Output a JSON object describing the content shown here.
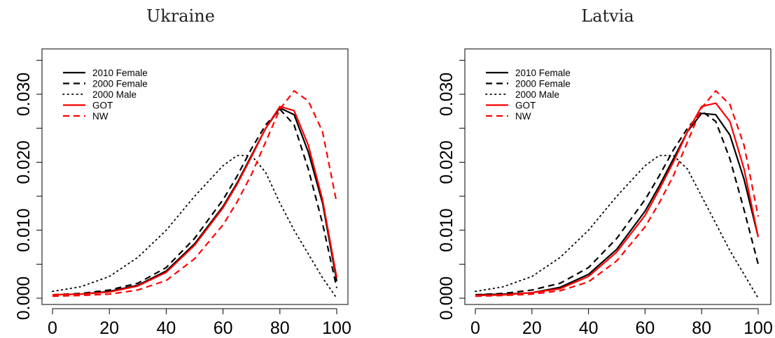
{
  "chart_data": [
    {
      "type": "line",
      "title": "Ukraine",
      "xlabel": "",
      "ylabel": "",
      "xlim": [
        0,
        100
      ],
      "ylim": [
        0,
        0.03
      ],
      "x_ticks": [
        "0",
        "20",
        "40",
        "60",
        "80",
        "100"
      ],
      "y_ticks": [
        "0.000",
        "0.010",
        "0.020",
        "0.030"
      ],
      "y_ticks_unlabeled": [
        0.005,
        0.015,
        0.025,
        0.035
      ],
      "x": [
        0,
        10,
        20,
        30,
        40,
        50,
        60,
        65,
        70,
        75,
        80,
        85,
        90,
        95,
        100
      ],
      "series": [
        {
          "name": "2010 Female",
          "color": "#000000",
          "style": "solid",
          "values": [
            0.0005,
            0.0006,
            0.001,
            0.0019,
            0.004,
            0.008,
            0.0135,
            0.017,
            0.021,
            0.025,
            0.028,
            0.027,
            0.0215,
            0.014,
            0.0025
          ]
        },
        {
          "name": "2000 Female",
          "color": "#000000",
          "style": "dashed",
          "values": [
            0.0005,
            0.0007,
            0.0012,
            0.0022,
            0.0045,
            0.0088,
            0.0145,
            0.018,
            0.022,
            0.0255,
            0.0278,
            0.0255,
            0.019,
            0.011,
            0.0015
          ]
        },
        {
          "name": "2000 Male",
          "color": "#000000",
          "style": "dotted",
          "values": [
            0.001,
            0.0017,
            0.0032,
            0.006,
            0.01,
            0.015,
            0.0195,
            0.021,
            0.021,
            0.0185,
            0.014,
            0.01,
            0.0065,
            0.003,
            0.0
          ]
        },
        {
          "name": "GOT",
          "color": "#ff0000",
          "style": "solid",
          "values": [
            0.0005,
            0.0006,
            0.0009,
            0.0018,
            0.0038,
            0.0078,
            0.0133,
            0.0168,
            0.0208,
            0.025,
            0.0282,
            0.0276,
            0.0225,
            0.0145,
            0.003
          ]
        },
        {
          "name": "NW",
          "color": "#ff0000",
          "style": "dashed",
          "values": [
            0.0003,
            0.0004,
            0.0006,
            0.0012,
            0.0026,
            0.0058,
            0.0108,
            0.0142,
            0.0182,
            0.023,
            0.0278,
            0.0305,
            0.029,
            0.0245,
            0.014
          ]
        }
      ],
      "legend": {
        "placement": "top-left",
        "entries": [
          "2010 Female",
          "2000 Female",
          "2000 Male",
          "GOT",
          "NW"
        ]
      },
      "grid": false
    },
    {
      "type": "line",
      "title": "Latvia",
      "xlabel": "",
      "ylabel": "",
      "xlim": [
        0,
        100
      ],
      "ylim": [
        0,
        0.03
      ],
      "x_ticks": [
        "0",
        "20",
        "40",
        "60",
        "80",
        "100"
      ],
      "y_ticks": [
        "0.000",
        "0.010",
        "0.020",
        "0.030"
      ],
      "y_ticks_unlabeled": [
        0.005,
        0.015,
        0.025,
        0.035
      ],
      "x": [
        0,
        10,
        20,
        30,
        40,
        50,
        60,
        65,
        70,
        75,
        80,
        85,
        90,
        95,
        100
      ],
      "series": [
        {
          "name": "2010 Female",
          "color": "#000000",
          "style": "solid",
          "values": [
            0.0005,
            0.0006,
            0.0008,
            0.0016,
            0.0035,
            0.0072,
            0.0128,
            0.0165,
            0.0205,
            0.0245,
            0.0272,
            0.027,
            0.024,
            0.0175,
            0.009
          ]
        },
        {
          "name": "2000 Female",
          "color": "#000000",
          "style": "dashed",
          "values": [
            0.0005,
            0.0007,
            0.0012,
            0.0022,
            0.0045,
            0.0088,
            0.0145,
            0.018,
            0.0218,
            0.025,
            0.0275,
            0.026,
            0.0205,
            0.013,
            0.005
          ]
        },
        {
          "name": "2000 Male",
          "color": "#000000",
          "style": "dotted",
          "values": [
            0.001,
            0.0017,
            0.0032,
            0.006,
            0.01,
            0.015,
            0.0195,
            0.021,
            0.021,
            0.019,
            0.015,
            0.011,
            0.007,
            0.0035,
            0.0
          ]
        },
        {
          "name": "GOT",
          "color": "#ff0000",
          "style": "solid",
          "values": [
            0.0004,
            0.0005,
            0.0008,
            0.0014,
            0.0032,
            0.0068,
            0.0122,
            0.016,
            0.02,
            0.0245,
            0.0282,
            0.0287,
            0.026,
            0.019,
            0.009
          ]
        },
        {
          "name": "NW",
          "color": "#ff0000",
          "style": "dashed",
          "values": [
            0.0003,
            0.0004,
            0.0006,
            0.0011,
            0.0024,
            0.0055,
            0.0105,
            0.014,
            0.018,
            0.023,
            0.028,
            0.0305,
            0.0285,
            0.0225,
            0.012
          ]
        }
      ],
      "legend": {
        "placement": "top-left",
        "entries": [
          "2010 Female",
          "2000 Female",
          "2000 Male",
          "GOT",
          "NW"
        ]
      },
      "grid": false
    }
  ]
}
